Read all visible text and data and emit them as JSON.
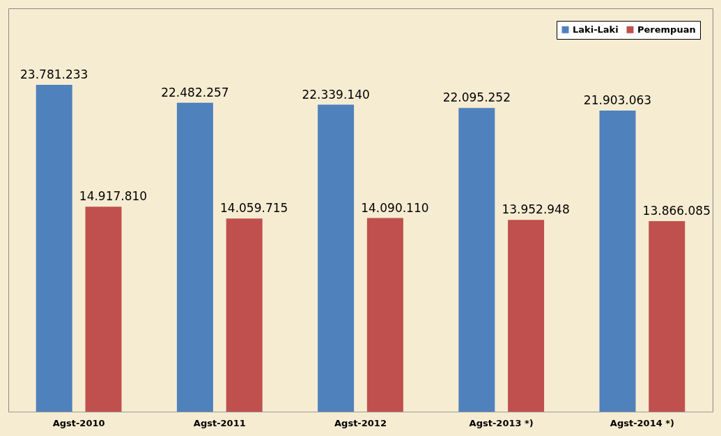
{
  "chart_data": {
    "type": "bar",
    "categories": [
      "Agst-2010",
      "Agst-2011",
      "Agst-2012",
      "Agst-2013 *)",
      "Agst-2014 *)"
    ],
    "series": [
      {
        "name": "Laki-Laki",
        "color": "#4f81bd",
        "values": [
          23781233,
          22482257,
          22339140,
          22095252,
          21903063
        ],
        "value_labels": [
          "23.781.233",
          "22.482.257",
          "22.339.140",
          "22.095.252",
          "21.903.063"
        ]
      },
      {
        "name": "Perempuan",
        "color": "#c0504d",
        "values": [
          14917810,
          14059715,
          14090110,
          13952948,
          13866085
        ],
        "value_labels": [
          "14.917.810",
          "14.059.715",
          "14.090.110",
          "13.952.948",
          "13.866.085"
        ]
      }
    ],
    "legend": "top right",
    "grid": false
  }
}
